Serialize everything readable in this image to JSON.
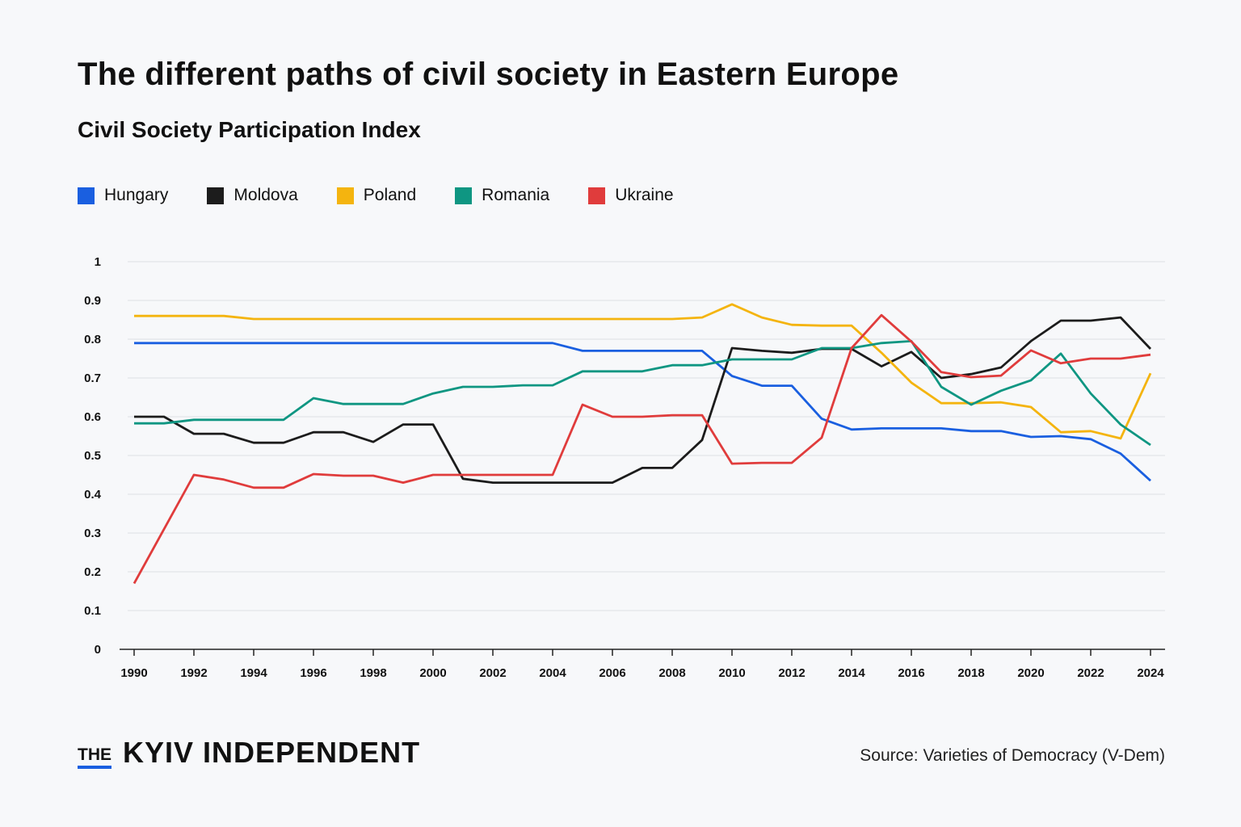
{
  "chart_data": {
    "type": "line",
    "title": "The different paths of civil society in Eastern Europe",
    "subtitle": "Civil Society Participation Index",
    "ylim": [
      0,
      1
    ],
    "xlim": [
      1990,
      2024
    ],
    "yticks": [
      "0",
      "0.1",
      "0.2",
      "0.3",
      "0.4",
      "0.5",
      "0.6",
      "0.7",
      "0.8",
      "0.9",
      "1"
    ],
    "xticks": [
      "1990",
      "1992",
      "1994",
      "1996",
      "1998",
      "2000",
      "2002",
      "2004",
      "2006",
      "2008",
      "2010",
      "2012",
      "2014",
      "2016",
      "2018",
      "2020",
      "2022",
      "2024"
    ],
    "grid": true,
    "legend_position": "top-left",
    "x": [
      1990,
      1991,
      1992,
      1993,
      1994,
      1995,
      1996,
      1997,
      1998,
      1999,
      2000,
      2001,
      2002,
      2003,
      2004,
      2005,
      2006,
      2007,
      2008,
      2009,
      2010,
      2011,
      2012,
      2013,
      2014,
      2015,
      2016,
      2017,
      2018,
      2019,
      2020,
      2021,
      2022,
      2023,
      2024
    ],
    "series": [
      {
        "name": "Hungary",
        "color": "#1a5fe0",
        "values": [
          0.79,
          0.79,
          0.79,
          0.79,
          0.79,
          0.79,
          0.79,
          0.79,
          0.79,
          0.79,
          0.79,
          0.79,
          0.79,
          0.79,
          0.79,
          0.77,
          0.77,
          0.77,
          0.77,
          0.77,
          0.705,
          0.68,
          0.68,
          0.595,
          0.567,
          0.57,
          0.57,
          0.57,
          0.563,
          0.563,
          0.548,
          0.55,
          0.542,
          0.505,
          0.435
        ]
      },
      {
        "name": "Moldova",
        "color": "#1c1c1c",
        "values": [
          0.6,
          0.6,
          0.556,
          0.556,
          0.533,
          0.533,
          0.56,
          0.56,
          0.535,
          0.58,
          0.58,
          0.44,
          0.43,
          0.43,
          0.43,
          0.43,
          0.43,
          0.468,
          0.468,
          0.54,
          0.777,
          0.77,
          0.765,
          0.775,
          0.775,
          0.73,
          0.767,
          0.7,
          0.71,
          0.727,
          0.795,
          0.848,
          0.848,
          0.856,
          0.775
        ]
      },
      {
        "name": "Poland",
        "color": "#f4b40f",
        "values": [
          0.86,
          0.86,
          0.86,
          0.86,
          0.852,
          0.852,
          0.852,
          0.852,
          0.852,
          0.852,
          0.852,
          0.852,
          0.852,
          0.852,
          0.852,
          0.852,
          0.852,
          0.852,
          0.852,
          0.856,
          0.89,
          0.856,
          0.837,
          0.835,
          0.835,
          0.765,
          0.688,
          0.635,
          0.635,
          0.637,
          0.625,
          0.56,
          0.563,
          0.544,
          0.712
        ]
      },
      {
        "name": "Romania",
        "color": "#0f9682",
        "values": [
          0.583,
          0.583,
          0.592,
          0.592,
          0.592,
          0.592,
          0.648,
          0.633,
          0.633,
          0.633,
          0.66,
          0.677,
          0.677,
          0.681,
          0.681,
          0.717,
          0.717,
          0.717,
          0.733,
          0.733,
          0.748,
          0.748,
          0.748,
          0.777,
          0.777,
          0.79,
          0.795,
          0.677,
          0.631,
          0.667,
          0.694,
          0.763,
          0.66,
          0.58,
          0.527
        ]
      },
      {
        "name": "Ukraine",
        "color": "#e03c3c",
        "values": [
          0.17,
          0.31,
          0.45,
          0.438,
          0.417,
          0.417,
          0.452,
          0.448,
          0.448,
          0.43,
          0.45,
          0.45,
          0.45,
          0.45,
          0.45,
          0.631,
          0.6,
          0.6,
          0.604,
          0.604,
          0.479,
          0.481,
          0.481,
          0.546,
          0.777,
          0.862,
          0.794,
          0.715,
          0.702,
          0.706,
          0.771,
          0.738,
          0.75,
          0.75,
          0.76
        ]
      }
    ]
  },
  "footer": {
    "logo_small": "THE",
    "logo_main": "KYIV INDEPENDENT",
    "source": "Source: Varieties of Democracy (V-Dem)"
  }
}
